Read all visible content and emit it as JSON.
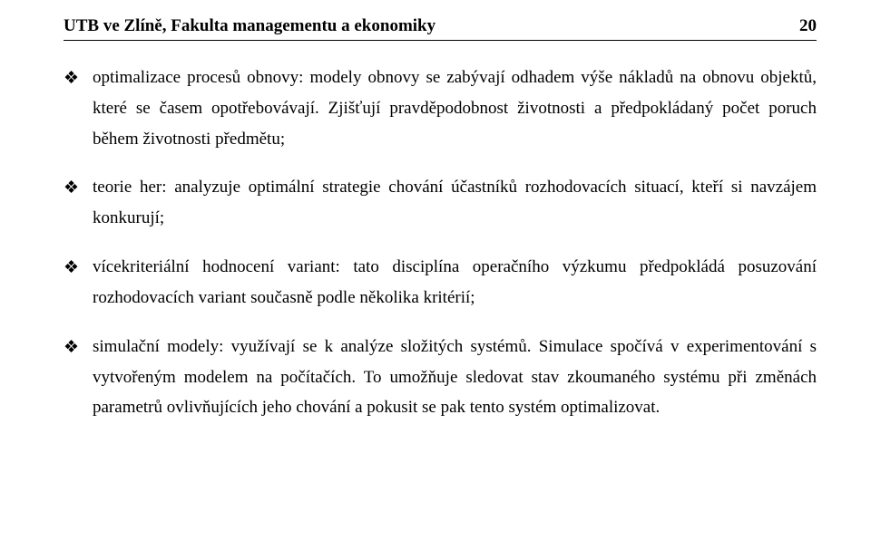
{
  "header": {
    "title": "UTB ve Zlíně, Fakulta managementu a ekonomiky",
    "page_number": "20"
  },
  "items": [
    {
      "marker": "❖",
      "text": "optimalizace procesů obnovy: modely obnovy se zabývají odhadem výše nákladů na obnovu objektů, které se časem opotřebovávají. Zjišťují pravděpodobnost životnosti a předpokládaný počet poruch během životnosti předmětu;"
    },
    {
      "marker": "❖",
      "text": "teorie her: analyzuje optimální strategie chování účastníků rozhodovacích situací, kteří si navzájem konkurují;"
    },
    {
      "marker": "❖",
      "text": "vícekriteriální hodnocení variant: tato disciplína operačního výzkumu předpokládá posuzování rozhodovacích variant současně podle několika kritérií;"
    },
    {
      "marker": "❖",
      "text": "simulační modely: využívají se k analýze složitých systémů. Simulace spočívá v experimentování s vytvořeným modelem na počítačích. To umožňuje sledovat stav zkoumaného systému při změnách parametrů ovlivňujících jeho chování a pokusit se pak tento systém optimalizovat."
    }
  ],
  "styling": {
    "body_bg": "#ffffff",
    "text_color": "#000000",
    "font_family": "Times New Roman",
    "header_fontsize": 19,
    "body_fontsize": 19,
    "line_height": 1.78,
    "underline_color": "#000000",
    "underline_width": 1.5
  }
}
